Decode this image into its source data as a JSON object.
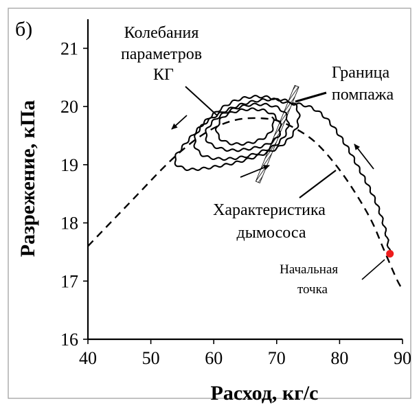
{
  "chart_data": {
    "type": "line",
    "panel_label": "б)",
    "title": "",
    "xlabel": "Расход, кг/с",
    "ylabel": "Разрежение, кПа",
    "xlim": [
      40,
      90
    ],
    "ylim": [
      16,
      21.5
    ],
    "x_ticks": [
      40,
      50,
      60,
      70,
      80,
      90
    ],
    "y_ticks": [
      16,
      17,
      18,
      19,
      20,
      21
    ],
    "grid": false,
    "legend": "none",
    "series": [
      {
        "style": "dashed",
        "x": [
          40,
          44,
          48,
          52,
          55,
          58,
          61,
          64,
          67,
          70,
          73,
          76,
          79,
          82,
          85,
          87,
          89,
          90
        ],
        "y": [
          17.6,
          18.05,
          18.5,
          18.95,
          19.25,
          19.5,
          19.68,
          19.78,
          19.8,
          19.76,
          19.62,
          19.4,
          19.05,
          18.6,
          18.05,
          17.55,
          17.05,
          16.85
        ]
      },
      {
        "style": "solid-oscillating",
        "x": [
          88,
          87.2,
          86,
          84.5,
          83,
          81.5,
          80,
          78.5,
          77,
          75.5,
          74,
          72.5,
          71,
          69,
          67,
          65,
          63,
          61,
          59,
          57,
          55,
          54,
          53.8,
          54.5,
          56,
          58,
          61,
          64,
          67,
          70,
          72,
          73.2,
          73.5,
          73,
          71.5,
          69,
          66,
          63,
          60,
          58,
          57,
          57.2,
          58.5,
          61,
          64,
          67,
          70,
          71.5,
          71.8,
          71,
          69,
          66,
          63,
          60.5,
          59,
          58.8,
          60,
          62.5,
          65.5,
          68.5,
          70.3,
          70.5,
          69.3,
          67,
          64,
          61.5,
          60.5,
          61,
          63,
          66,
          68.5,
          69.5,
          69.2
        ],
        "y": [
          17.47,
          17.9,
          18.3,
          18.65,
          18.95,
          19.25,
          19.5,
          19.72,
          19.88,
          19.98,
          20.03,
          20.05,
          20.08,
          20.15,
          20.17,
          20.15,
          20.08,
          19.95,
          19.78,
          19.55,
          19.3,
          19.15,
          19.05,
          18.97,
          18.92,
          18.93,
          18.98,
          19.05,
          19.15,
          19.28,
          19.45,
          19.65,
          19.85,
          20.02,
          20.1,
          20.12,
          20.08,
          19.98,
          19.82,
          19.65,
          19.45,
          19.28,
          19.15,
          19.1,
          19.12,
          19.2,
          19.35,
          19.55,
          19.75,
          19.92,
          20.02,
          20.03,
          19.95,
          19.8,
          19.62,
          19.45,
          19.32,
          19.25,
          19.27,
          19.35,
          19.5,
          19.7,
          19.87,
          19.95,
          19.93,
          19.82,
          19.62,
          19.45,
          19.36,
          19.38,
          19.5,
          19.68,
          19.82
        ]
      }
    ],
    "surge_boundary": {
      "x": [
        67,
        73.2
      ],
      "y": [
        18.7,
        20.35
      ]
    },
    "start_point": {
      "x": 88,
      "y": 17.47,
      "color": "#ee1c1c"
    },
    "annotations": [
      {
        "lines": [
          "Колебания",
          "параметров",
          "КГ"
        ]
      },
      {
        "lines": [
          "Граница",
          "помпажа"
        ]
      },
      {
        "lines": [
          "Характеристика",
          "дымососа"
        ]
      },
      {
        "lines": [
          "Начальная",
          "точка"
        ]
      }
    ]
  }
}
